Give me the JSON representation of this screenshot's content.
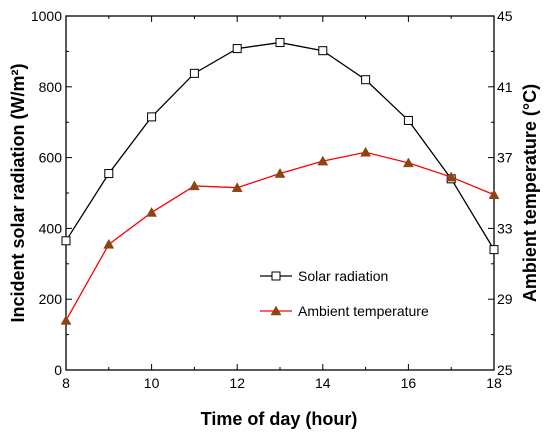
{
  "chart_data": {
    "type": "line",
    "xlabel": "Time of day (hour)",
    "ylabel_left": "Incident solar radiation (W/m²)",
    "ylabel_right": "Ambient temperature (°C)",
    "xlim": [
      8,
      18
    ],
    "ylim_left": [
      0,
      1000
    ],
    "ylim_right": [
      25,
      45
    ],
    "x_ticks": [
      "8",
      "10",
      "12",
      "14",
      "16",
      "18"
    ],
    "y_ticks_left": [
      "0",
      "200",
      "400",
      "600",
      "800",
      "1000"
    ],
    "y_ticks_right": [
      "25",
      "29",
      "33",
      "37",
      "41",
      "45"
    ],
    "grid": false,
    "legend_position": "right-middle",
    "series": [
      {
        "name": "Solar radiation",
        "axis": "left",
        "color": "#000000",
        "marker": "open-square",
        "x": [
          8,
          9,
          10,
          11,
          12,
          13,
          14,
          15,
          16,
          17,
          18
        ],
        "values": [
          365,
          555,
          715,
          838,
          908,
          925,
          902,
          820,
          705,
          540,
          340
        ]
      },
      {
        "name": "Ambient temperature",
        "axis": "right",
        "color": "#ff0000",
        "marker": "filled-triangle",
        "marker_color": "#8b4513",
        "x": [
          8,
          9,
          10,
          11,
          12,
          13,
          14,
          15,
          16,
          17,
          18
        ],
        "values": [
          27.8,
          32.1,
          33.9,
          35.4,
          35.3,
          36.1,
          36.8,
          37.3,
          36.7,
          35.9,
          34.9
        ]
      }
    ]
  }
}
